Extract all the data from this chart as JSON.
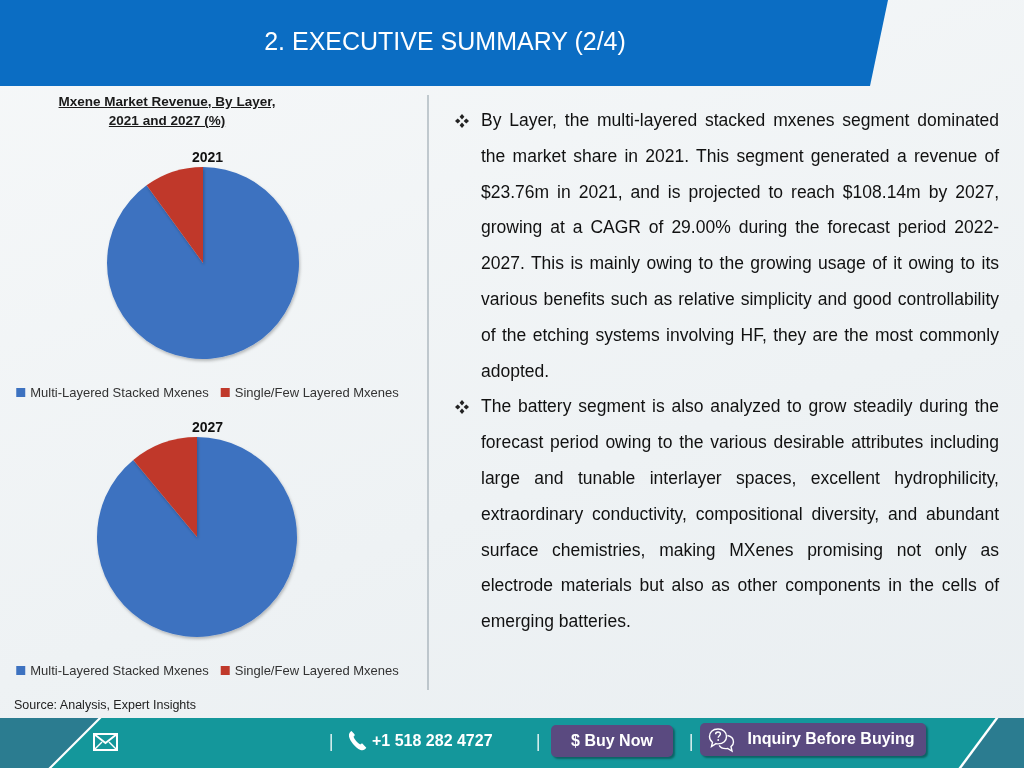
{
  "chart_data": [
    {
      "type": "pie",
      "title": "Mxene Market Revenue, By Layer, 2021 and 2027 (%)",
      "subtitle": "2021",
      "categories": [
        "Multi-Layered Stacked Mxenes",
        "Single/Few Layered Mxenes"
      ],
      "values": [
        90,
        10
      ],
      "colors": [
        "#3d72c0",
        "#c0392b"
      ],
      "legend": "bottom"
    },
    {
      "type": "pie",
      "title": "2027",
      "categories": [
        "Multi-Layered Stacked Mxenes",
        "Single/Few Layered Mxenes"
      ],
      "values": [
        89,
        11
      ],
      "colors": [
        "#3d72c0",
        "#c0392b"
      ],
      "legend": "bottom",
      "annotations": [
        "Source: Analysis, Expert Insights"
      ]
    },
    {
      "type": "other",
      "title": "2. EXECUTIVE SUMMARY (2/4)",
      "annotations": [
        "By Layer, the multi-layered stacked mxenes segment dominated the market share in 2021. This segment generated a revenue of $23.76m in 2021, and is projected to reach $108.14m by 2027, growing at a CAGR of 29.00% during the forecast period 2022-2027. This is mainly owing to the growing usage of it owing to its various benefits such as relative simplicity and good controllability of the etching systems involving HF, they are the most commonly adopted.",
        "The battery segment is also analyzed to grow steadily during the forecast period owing to the various desirable attributes including large and tunable interlayer spaces, excellent hydrophilicity, extraordinary conductivity, compositional diversity, and abundant surface chemistries, making MXenes promising not only as electrode materials but also as other components in the cells of emerging batteries.",
        "+1 518 282 4727",
        "$ Buy Now",
        "Inquiry Before Buying"
      ]
    }
  ]
}
